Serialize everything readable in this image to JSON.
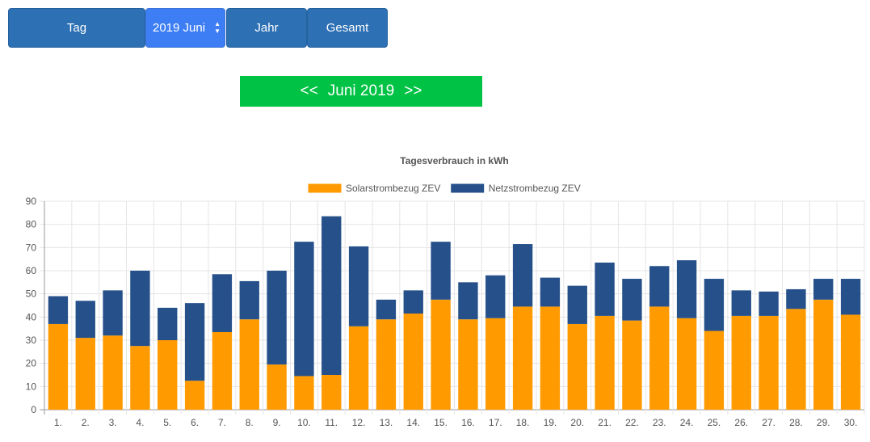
{
  "controls": {
    "day_label": "Tag",
    "month_select_value": "2019 Juni",
    "year_label": "Jahr",
    "total_label": "Gesamt"
  },
  "nav": {
    "prev": "<<",
    "title": "Juni 2019",
    "next": ">>"
  },
  "chart_data": {
    "type": "bar",
    "stacked": true,
    "title": "Tagesverbrauch in kWh",
    "xlabel": "",
    "ylabel": "",
    "ylim": [
      0,
      90
    ],
    "yticks": [
      0,
      10,
      20,
      30,
      40,
      50,
      60,
      70,
      80,
      90
    ],
    "grid": true,
    "legend_position": "top",
    "categories": [
      "1.",
      "2.",
      "3.",
      "4.",
      "5.",
      "6.",
      "7.",
      "8.",
      "9.",
      "10.",
      "11.",
      "12.",
      "13.",
      "14.",
      "15.",
      "16.",
      "17.",
      "18.",
      "19.",
      "20.",
      "21.",
      "22.",
      "23.",
      "24.",
      "25.",
      "26.",
      "27.",
      "28.",
      "29.",
      "30."
    ],
    "series": [
      {
        "name": "Solarstrombezug ZEV",
        "color": "#ff9a00",
        "values": [
          37,
          31,
          32,
          27.5,
          30,
          12.5,
          33.5,
          39,
          19.5,
          14.5,
          15,
          36,
          39,
          41.5,
          47.5,
          39,
          39.5,
          44.5,
          44.5,
          37,
          40.5,
          38.5,
          44.5,
          39.5,
          34,
          40.5,
          40.5,
          43.5,
          47.5,
          41
        ]
      },
      {
        "name": "Netzstrombezug ZEV",
        "color": "#25508a",
        "values": [
          12,
          16,
          19.5,
          32.5,
          14,
          33.5,
          25,
          16.5,
          40.5,
          58,
          68.5,
          34.5,
          8.5,
          10,
          25,
          16,
          18.5,
          27,
          12.5,
          16.5,
          23,
          18,
          17.5,
          25,
          22.5,
          11,
          10.5,
          8.5,
          9,
          15.5
        ]
      }
    ]
  }
}
